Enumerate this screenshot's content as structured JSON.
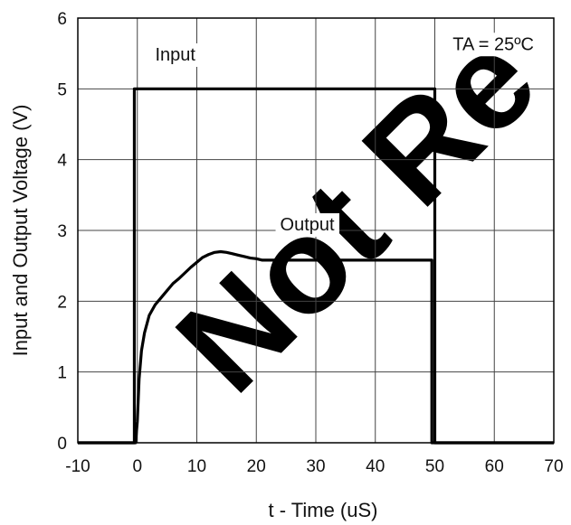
{
  "chart_data": {
    "type": "line",
    "title": "",
    "xlabel": "t - Time (uS)",
    "ylabel": "Input and Output Voltage (V)",
    "xlim": [
      -10,
      70
    ],
    "ylim": [
      0,
      6
    ],
    "x_ticks": [
      -10,
      0,
      10,
      20,
      30,
      40,
      50,
      60,
      70
    ],
    "y_ticks": [
      0,
      1,
      2,
      3,
      4,
      5,
      6
    ],
    "grid": true,
    "series": [
      {
        "name": "Input",
        "color": "#000000",
        "x": [
          -10,
          -0.5,
          -0.5,
          50,
          50,
          70
        ],
        "y": [
          0,
          0,
          5,
          5,
          0,
          0
        ]
      },
      {
        "name": "Output",
        "color": "#000000",
        "x": [
          -10,
          -0.3,
          0,
          0.3,
          0.7,
          1.2,
          2,
          3,
          4,
          5,
          6,
          7,
          8,
          9,
          10,
          11,
          12,
          13,
          14,
          15,
          16,
          17,
          18,
          19,
          20,
          21,
          25,
          30,
          40,
          49.5,
          49.5,
          50,
          70
        ],
        "y": [
          0,
          0,
          0.3,
          0.9,
          1.3,
          1.55,
          1.8,
          1.95,
          2.05,
          2.15,
          2.25,
          2.32,
          2.4,
          2.48,
          2.55,
          2.62,
          2.66,
          2.69,
          2.7,
          2.69,
          2.67,
          2.65,
          2.63,
          2.61,
          2.6,
          2.58,
          2.58,
          2.58,
          2.58,
          2.58,
          0,
          0,
          0
        ]
      }
    ],
    "annotations": [
      {
        "text": "Input",
        "x": 3,
        "y": 5.4
      },
      {
        "text": "Output",
        "x": 24,
        "y": 3.0
      },
      {
        "text": "TA = 25ºC",
        "x": 53,
        "y": 5.55
      }
    ],
    "watermark": "Not Re"
  }
}
